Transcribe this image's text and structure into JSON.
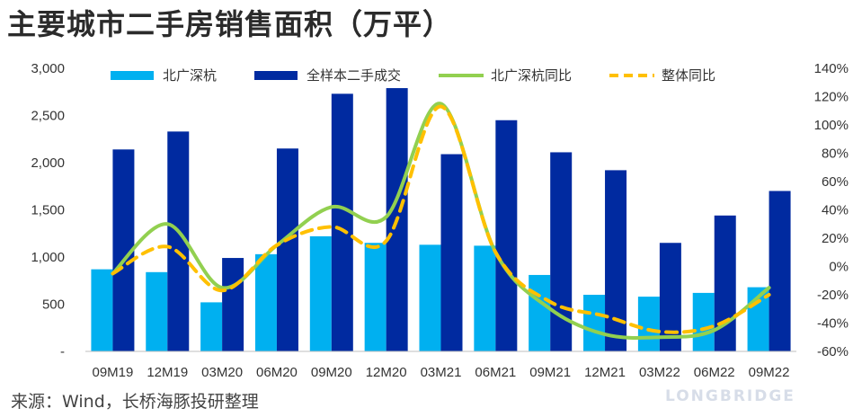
{
  "header": {
    "title": "主要城市二手房销售面积（万平）"
  },
  "footer": {
    "source": "来源：Wind，长桥海豚投研整理",
    "watermark": "LONGBRIDGE"
  },
  "colors": {
    "bar_bsgh": "#00b0f0",
    "bar_all": "#002aa0",
    "line_bsgh": "#92d050",
    "line_all": "#ffc000"
  },
  "chart_data": {
    "type": "bar+line",
    "categories": [
      "09M19",
      "12M19",
      "03M20",
      "06M20",
      "09M20",
      "12M20",
      "03M21",
      "06M21",
      "09M21",
      "12M21",
      "03M22",
      "06M22",
      "09M22"
    ],
    "series": [
      {
        "name": "北广深杭",
        "type": "bar",
        "axis": "left",
        "values": [
          870,
          840,
          520,
          1030,
          1220,
          1150,
          1130,
          1120,
          810,
          600,
          580,
          620,
          680
        ]
      },
      {
        "name": "全样本二手成交",
        "type": "bar",
        "axis": "left",
        "values": [
          2140,
          2330,
          990,
          2150,
          2730,
          2790,
          2090,
          2450,
          2110,
          1920,
          1150,
          1440,
          1700
        ]
      },
      {
        "name": "北广深杭同比",
        "type": "line",
        "axis": "right",
        "values": [
          -5,
          30,
          -15,
          15,
          42,
          35,
          115,
          10,
          -30,
          -48,
          -50,
          -45,
          -15
        ]
      },
      {
        "name": "整体同比",
        "type": "line",
        "axis": "right",
        "values": [
          -5,
          14,
          -17,
          15,
          28,
          18,
          113,
          10,
          -25,
          -35,
          -46,
          -42,
          -20
        ]
      }
    ],
    "y_left": {
      "min": 0,
      "max": 3000,
      "ticks": [
        0,
        500,
        1000,
        1500,
        2000,
        2500,
        3000
      ],
      "tick_labels": [
        "-",
        "500",
        "1,000",
        "1,500",
        "2,000",
        "2,500",
        "3,000"
      ]
    },
    "y_right": {
      "min": -60,
      "max": 140,
      "ticks": [
        -60,
        -40,
        -20,
        0,
        20,
        40,
        60,
        80,
        100,
        120,
        140
      ],
      "tick_labels": [
        "-60%",
        "-40%",
        "-20%",
        "0%",
        "20%",
        "40%",
        "60%",
        "80%",
        "100%",
        "120%",
        "140%"
      ]
    },
    "legend_position": "top",
    "grid": false
  }
}
